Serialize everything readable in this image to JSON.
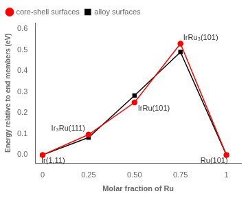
{
  "chart_data": {
    "type": "line",
    "xlabel": "Molar fraction of Ru",
    "ylabel": "Energy relative to end members (eV)",
    "x": [
      0,
      0.25,
      0.5,
      0.75,
      1.0
    ],
    "series": [
      {
        "name": "core-shell surfaces",
        "color": "#ff0000",
        "marker": "circle",
        "values": [
          0.0,
          0.097,
          0.25,
          0.53,
          0.0
        ]
      },
      {
        "name": "alloy surfaces",
        "color": "#000000",
        "marker": "square",
        "values": [
          0.0,
          0.083,
          0.283,
          0.49,
          0.0
        ]
      }
    ],
    "annotations": [
      {
        "text": "Ir(1,11)",
        "x": 0.0,
        "y": 0.0
      },
      {
        "text": "Ir₃Ru(111)",
        "x": 0.25,
        "y": 0.097
      },
      {
        "text": "IrRu(101)",
        "x": 0.5,
        "y": 0.25
      },
      {
        "text": "IrRu₃(101)",
        "x": 0.75,
        "y": 0.53
      },
      {
        "text": "Ru(101)",
        "x": 1.0,
        "y": 0.0
      }
    ],
    "xlim": [
      -0.04,
      1.08
    ],
    "ylim": [
      -0.04,
      0.63
    ],
    "xticks": [
      0,
      0.25,
      {
        "value": 0.5,
        "label": "0.50"
      },
      0.75,
      1
    ],
    "yticks": [
      {
        "value": 0,
        "label": "0.0"
      },
      0.1,
      0.2,
      0.3,
      0.4,
      0.5,
      0.6
    ],
    "grid": false,
    "legend": "upper left"
  }
}
